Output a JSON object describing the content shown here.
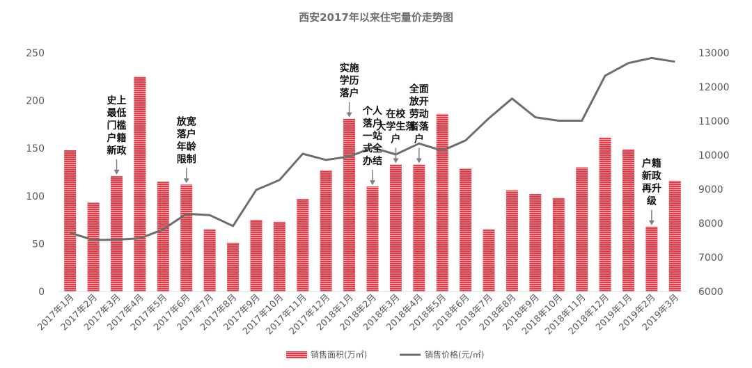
{
  "chart_data": {
    "type": "bar",
    "title": "西安2017年以来住宅量价走势图",
    "categories": [
      "2017年1月",
      "2017年2月",
      "2017年3月",
      "2017年4月",
      "2017年5月",
      "2017年6月",
      "2017年7月",
      "2017年8月",
      "2017年9月",
      "2017年10月",
      "2017年11月",
      "2017年12月",
      "2018年1月",
      "2018年2月",
      "2018年3月",
      "2018年4月",
      "2018年5月",
      "2018年6月",
      "2018年7月",
      "2018年8月",
      "2018年9月",
      "2018年10月",
      "2018年11月",
      "2018年12月",
      "2019年1月",
      "2019年2月",
      "2019年3月"
    ],
    "series": [
      {
        "name": "销售面积(万㎡)",
        "type": "bar",
        "axis": "left",
        "color": "#e8424f",
        "values": [
          148,
          93,
          121,
          225,
          115,
          112,
          65,
          51,
          75,
          73,
          97,
          127,
          181,
          110,
          133,
          133,
          186,
          129,
          65,
          106,
          102,
          98,
          130,
          161,
          149,
          68,
          116
        ]
      },
      {
        "name": "销售价格(元/㎡)",
        "type": "line",
        "axis": "right",
        "color": "#6d6d6d",
        "values": [
          7720,
          7510,
          7520,
          7560,
          7820,
          8280,
          8240,
          7920,
          8980,
          9270,
          10040,
          9860,
          9960,
          10220,
          10020,
          10340,
          10130,
          10430,
          11080,
          11660,
          11110,
          11010,
          11010,
          12330,
          12700,
          12850,
          12740
        ]
      }
    ],
    "left_axis": {
      "min": 0,
      "max": 250,
      "ticks": [
        0,
        50,
        100,
        150,
        200,
        250
      ]
    },
    "right_axis": {
      "min": 6000,
      "max": 13000,
      "ticks": [
        6000,
        7000,
        8000,
        9000,
        10000,
        11000,
        12000,
        13000
      ]
    },
    "annotations": [
      {
        "category": "2017年3月",
        "lines": [
          "史上",
          "最低",
          "门槛",
          "户籍",
          "新政"
        ]
      },
      {
        "category": "2017年6月",
        "lines": [
          "放宽",
          "落户",
          "年龄",
          "限制"
        ]
      },
      {
        "category": "2018年1月",
        "lines": [
          "实施",
          "学历",
          "落户"
        ]
      },
      {
        "category": "2018年2月",
        "lines": [
          "个人",
          "落户",
          "一站",
          "式全",
          "办结"
        ]
      },
      {
        "category": "2018年3月",
        "lines": [
          "在校",
          "大学生落",
          "户"
        ]
      },
      {
        "category": "2018年4月",
        "lines": [
          "全面",
          "放开",
          "劳动",
          "者落",
          "户"
        ]
      },
      {
        "category": "2019年2月",
        "lines": [
          "户籍",
          "新政",
          "再升",
          "级"
        ]
      }
    ],
    "grid": false,
    "legend": "bottom"
  }
}
